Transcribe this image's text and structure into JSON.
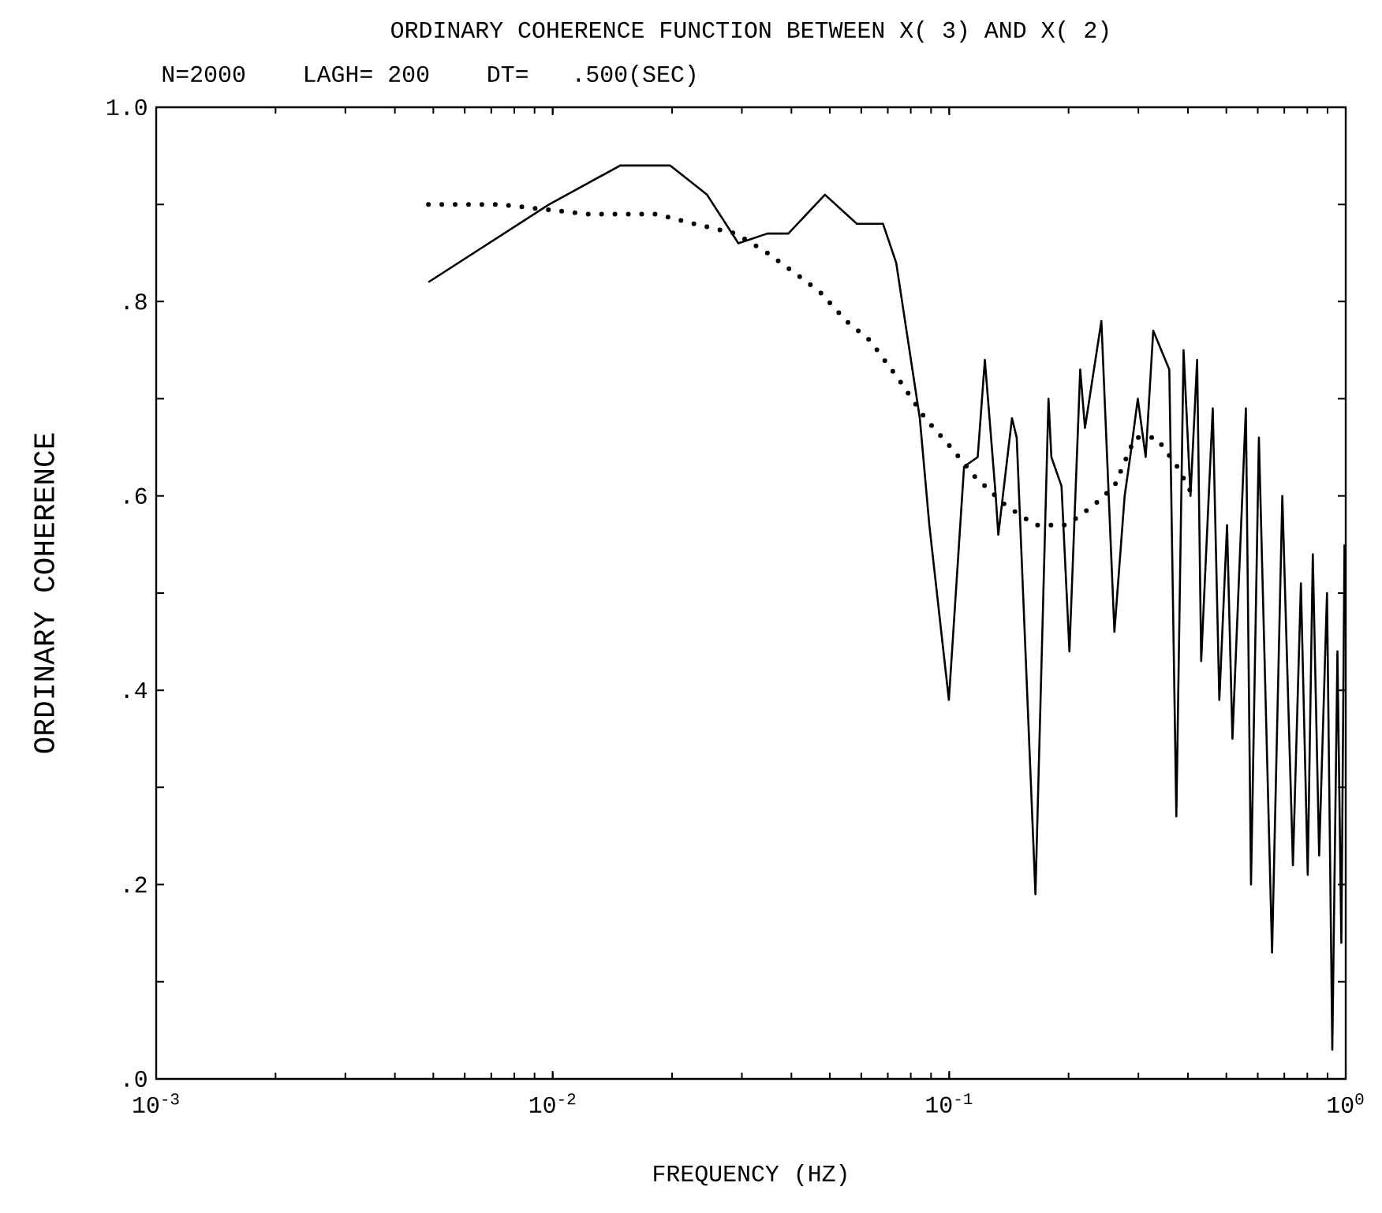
{
  "chart_data": {
    "type": "line",
    "title": "ORDINARY COHERENCE FUNCTION BETWEEN X( 3) AND X( 2)",
    "subtitle": "N=2000    LAGH= 200    DT=   .500(SEC)",
    "xlabel": "FREQUENCY (HZ)",
    "ylabel": "ORDINARY COHERENCE",
    "log": "x",
    "grid": false,
    "xlim": [
      0.001,
      1
    ],
    "ylim": [
      0,
      1
    ],
    "xticks": [
      {
        "value": 0.001,
        "label": "10$^{-3}$"
      },
      {
        "value": 0.01,
        "label": "10$^{-2}$"
      },
      {
        "value": 0.1,
        "label": "10$^{-1}$"
      },
      {
        "value": 1,
        "label": "10$^{0}$"
      }
    ],
    "yticks": [
      {
        "value": 0,
        "label": ".0"
      },
      {
        "value": 0.1,
        "label": null
      },
      {
        "value": 0.2,
        "label": ".2"
      },
      {
        "value": 0.3,
        "label": null
      },
      {
        "value": 0.4,
        "label": ".4"
      },
      {
        "value": 0.5,
        "label": null
      },
      {
        "value": 0.6,
        "label": ".6"
      },
      {
        "value": 0.7,
        "label": null
      },
      {
        "value": 0.8,
        "label": ".8"
      },
      {
        "value": 0.9,
        "label": null
      },
      {
        "value": 1,
        "label": "1.0"
      }
    ],
    "series": [
      {
        "color": "#000000",
        "line_style": "solid",
        "x": [
          0.00486,
          0.0098,
          0.0148,
          0.0198,
          0.0245,
          0.0294,
          0.0348,
          0.0393,
          0.0486,
          0.0585,
          0.0681,
          0.0735,
          0.0843,
          0.0891,
          0.0998,
          0.109,
          0.118,
          0.123,
          0.131,
          0.133,
          0.144,
          0.148,
          0.165,
          0.178,
          0.181,
          0.192,
          0.201,
          0.214,
          0.22,
          0.242,
          0.261,
          0.277,
          0.286,
          0.299,
          0.313,
          0.327,
          0.359,
          0.374,
          0.39,
          0.406,
          0.422,
          0.432,
          0.462,
          0.48,
          0.502,
          0.518,
          0.56,
          0.577,
          0.604,
          0.652,
          0.692,
          0.736,
          0.771,
          0.802,
          0.826,
          0.857,
          0.897,
          0.925,
          0.953,
          0.975,
          0.993
        ],
        "values": [
          0.82,
          0.9,
          0.94,
          0.94,
          0.91,
          0.86,
          0.87,
          0.87,
          0.91,
          0.88,
          0.88,
          0.84,
          0.68,
          0.57,
          0.39,
          0.63,
          0.64,
          0.74,
          0.6,
          0.56,
          0.68,
          0.66,
          0.19,
          0.7,
          0.64,
          0.61,
          0.44,
          0.73,
          0.67,
          0.78,
          0.46,
          0.6,
          0.64,
          0.7,
          0.64,
          0.77,
          0.73,
          0.27,
          0.75,
          0.6,
          0.74,
          0.43,
          0.69,
          0.39,
          0.57,
          0.35,
          0.69,
          0.2,
          0.66,
          0.13,
          0.6,
          0.22,
          0.51,
          0.21,
          0.54,
          0.23,
          0.5,
          0.03,
          0.44,
          0.14,
          0.55
        ]
      },
      {
        "color": "#000000",
        "line_style": "dotted",
        "x": [
          0.00486,
          0.00733,
          0.0123,
          0.0183,
          0.0227,
          0.029,
          0.0348,
          0.0406,
          0.0472,
          0.055,
          0.0631,
          0.0746,
          0.0869,
          0.101,
          0.116,
          0.139,
          0.165,
          0.198,
          0.231,
          0.261,
          0.294,
          0.333,
          0.376,
          0.412
        ],
        "values": [
          0.9,
          0.9,
          0.89,
          0.89,
          0.88,
          0.87,
          0.85,
          0.83,
          0.81,
          0.78,
          0.76,
          0.72,
          0.68,
          0.65,
          0.62,
          0.59,
          0.57,
          0.57,
          0.59,
          0.61,
          0.66,
          0.66,
          0.63,
          0.6
        ]
      }
    ]
  }
}
